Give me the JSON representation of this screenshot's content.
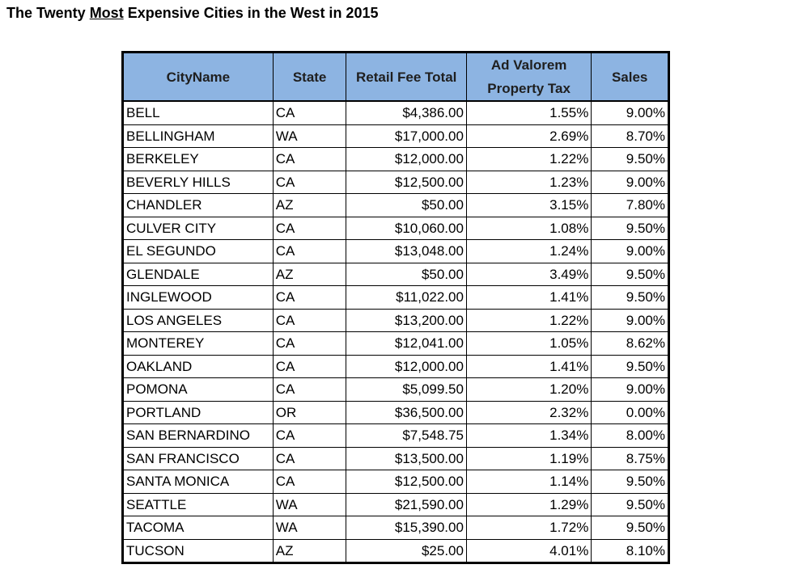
{
  "title": {
    "prefix": "The Twenty ",
    "emphasis": "Most",
    "suffix": " Expensive Cities in the West in 2015"
  },
  "table": {
    "headers": {
      "city": "CityName",
      "state": "State",
      "fee": "Retail Fee Total",
      "prop_line1": "Ad Valorem",
      "prop_line2": "Property Tax",
      "sales": "Sales"
    },
    "rows": [
      {
        "city": "BELL",
        "state": "CA",
        "fee": "$4,386.00",
        "prop": "1.55%",
        "sales": "9.00%"
      },
      {
        "city": "BELLINGHAM",
        "state": "WA",
        "fee": "$17,000.00",
        "prop": "2.69%",
        "sales": "8.70%"
      },
      {
        "city": "BERKELEY",
        "state": "CA",
        "fee": "$12,000.00",
        "prop": "1.22%",
        "sales": "9.50%"
      },
      {
        "city": "BEVERLY HILLS",
        "state": "CA",
        "fee": "$12,500.00",
        "prop": "1.23%",
        "sales": "9.00%"
      },
      {
        "city": "CHANDLER",
        "state": "AZ",
        "fee": "$50.00",
        "prop": "3.15%",
        "sales": "7.80%"
      },
      {
        "city": "CULVER CITY",
        "state": "CA",
        "fee": "$10,060.00",
        "prop": "1.08%",
        "sales": "9.50%"
      },
      {
        "city": "EL SEGUNDO",
        "state": "CA",
        "fee": "$13,048.00",
        "prop": "1.24%",
        "sales": "9.00%"
      },
      {
        "city": "GLENDALE",
        "state": "AZ",
        "fee": "$50.00",
        "prop": "3.49%",
        "sales": "9.50%"
      },
      {
        "city": "INGLEWOOD",
        "state": "CA",
        "fee": "$11,022.00",
        "prop": "1.41%",
        "sales": "9.50%"
      },
      {
        "city": "LOS ANGELES",
        "state": "CA",
        "fee": "$13,200.00",
        "prop": "1.22%",
        "sales": "9.00%"
      },
      {
        "city": "MONTEREY",
        "state": "CA",
        "fee": "$12,041.00",
        "prop": "1.05%",
        "sales": "8.62%"
      },
      {
        "city": "OAKLAND",
        "state": "CA",
        "fee": "$12,000.00",
        "prop": "1.41%",
        "sales": "9.50%"
      },
      {
        "city": "POMONA",
        "state": "CA",
        "fee": "$5,099.50",
        "prop": "1.20%",
        "sales": "9.00%"
      },
      {
        "city": "PORTLAND",
        "state": "OR",
        "fee": "$36,500.00",
        "prop": "2.32%",
        "sales": "0.00%"
      },
      {
        "city": "SAN BERNARDINO",
        "state": "CA",
        "fee": "$7,548.75",
        "prop": "1.34%",
        "sales": "8.00%"
      },
      {
        "city": "SAN FRANCISCO",
        "state": "CA",
        "fee": "$13,500.00",
        "prop": "1.19%",
        "sales": "8.75%"
      },
      {
        "city": "SANTA MONICA",
        "state": "CA",
        "fee": "$12,500.00",
        "prop": "1.14%",
        "sales": "9.50%"
      },
      {
        "city": "SEATTLE",
        "state": "WA",
        "fee": "$21,590.00",
        "prop": "1.29%",
        "sales": "9.50%"
      },
      {
        "city": "TACOMA",
        "state": "WA",
        "fee": "$15,390.00",
        "prop": "1.72%",
        "sales": "9.50%"
      },
      {
        "city": "TUCSON",
        "state": "AZ",
        "fee": "$25.00",
        "prop": "4.01%",
        "sales": "8.10%"
      }
    ]
  }
}
